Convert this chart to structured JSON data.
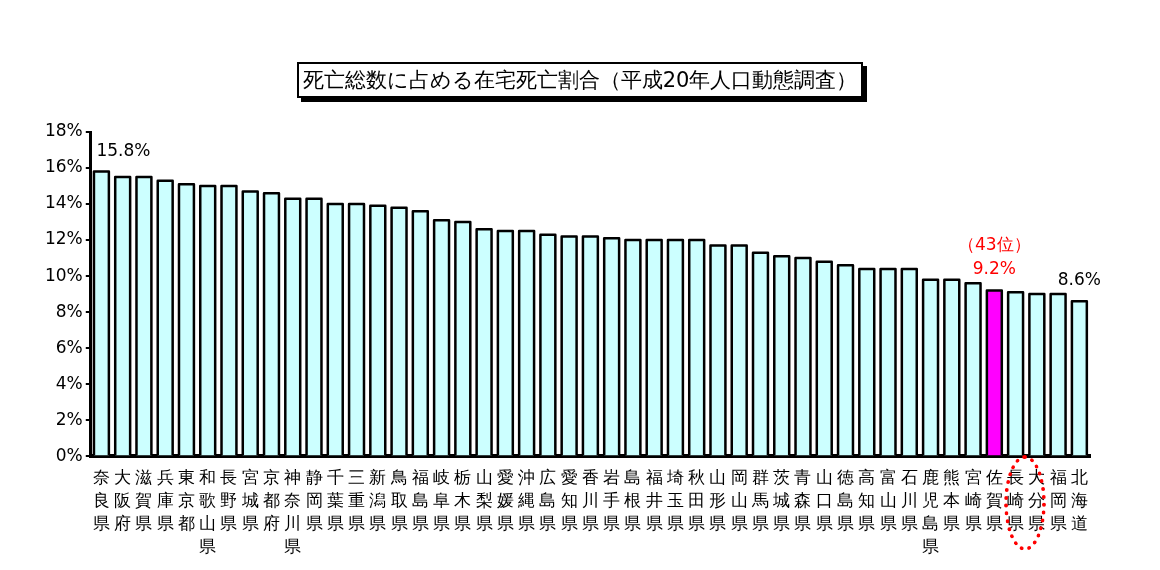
{
  "chart_data": {
    "type": "bar",
    "title": "死亡総数に占める在宅死亡割合（平成20年人口動態調査）",
    "categories": [
      "奈良県",
      "大阪府",
      "滋賀県",
      "兵庫県",
      "東京都",
      "和歌山県",
      "長野県",
      "宮城県",
      "京都府",
      "神奈川県",
      "静岡県",
      "千葉県",
      "三重県",
      "新潟県",
      "鳥取県",
      "福島県",
      "岐阜県",
      "栃木県",
      "山梨県",
      "愛媛県",
      "沖縄県",
      "広島県",
      "愛知県",
      "香川県",
      "岩手県",
      "島根県",
      "福井県",
      "埼玉県",
      "秋田県",
      "山形県",
      "岡山県",
      "群馬県",
      "茨城県",
      "青森県",
      "山口県",
      "徳島県",
      "高知県",
      "富山県",
      "石川県",
      "鹿児島県",
      "熊本県",
      "宮崎県",
      "佐賀県",
      "長崎県",
      "大分県",
      "福岡県",
      "北海道"
    ],
    "values": [
      15.8,
      15.5,
      15.5,
      15.3,
      15.1,
      15.0,
      15.0,
      14.7,
      14.6,
      14.3,
      14.3,
      14.0,
      14.0,
      13.9,
      13.8,
      13.6,
      13.1,
      13.0,
      12.6,
      12.5,
      12.5,
      12.3,
      12.2,
      12.2,
      12.1,
      12.0,
      12.0,
      12.0,
      12.0,
      11.7,
      11.7,
      11.3,
      11.1,
      11.0,
      10.8,
      10.6,
      10.4,
      10.4,
      10.4,
      9.8,
      9.8,
      9.6,
      9.2,
      9.1,
      9.0,
      9.0,
      8.6
    ],
    "colors": [
      "#ccffff",
      "#ccffff",
      "#ccffff",
      "#ccffff",
      "#ccffff",
      "#ccffff",
      "#ccffff",
      "#ccffff",
      "#ccffff",
      "#ccffff",
      "#ccffff",
      "#ccffff",
      "#ccffff",
      "#ccffff",
      "#ccffff",
      "#ccffff",
      "#ccffff",
      "#ccffff",
      "#ccffff",
      "#ccffff",
      "#ccffff",
      "#ccffff",
      "#ccffff",
      "#ccffff",
      "#ccffff",
      "#ccffff",
      "#ccffff",
      "#ccffff",
      "#ccffff",
      "#ccffff",
      "#ccffff",
      "#ccffff",
      "#ccffff",
      "#ccffff",
      "#ccffff",
      "#ccffff",
      "#ccffff",
      "#ccffff",
      "#ccffff",
      "#ccffff",
      "#ccffff",
      "#ccffff",
      "#ff00ff",
      "#ccffff",
      "#ccffff",
      "#ccffff",
      "#ccffff"
    ],
    "value_labels": [
      "15.8%",
      null,
      null,
      null,
      null,
      null,
      null,
      null,
      null,
      null,
      null,
      null,
      null,
      null,
      null,
      null,
      null,
      null,
      null,
      null,
      null,
      null,
      null,
      null,
      null,
      null,
      null,
      null,
      null,
      null,
      null,
      null,
      null,
      null,
      null,
      null,
      null,
      null,
      null,
      null,
      null,
      null,
      "9.2%",
      null,
      null,
      null,
      "8.6%"
    ],
    "annotations": [
      {
        "text": "（43位）",
        "x": "佐賀県",
        "y": 9.2
      }
    ],
    "ylim": [
      0,
      18
    ],
    "yticks": [
      {
        "value": 0,
        "label": "0%"
      },
      {
        "value": 2,
        "label": "2%"
      },
      {
        "value": 4,
        "label": "4%"
      },
      {
        "value": 6,
        "label": "6%"
      },
      {
        "value": 8,
        "label": "8%"
      },
      {
        "value": 10,
        "label": "10%"
      },
      {
        "value": 12,
        "label": "12%"
      },
      {
        "value": 14,
        "label": "14%"
      },
      {
        "value": 16,
        "label": "16%"
      },
      {
        "value": 18,
        "label": "18%"
      }
    ]
  }
}
